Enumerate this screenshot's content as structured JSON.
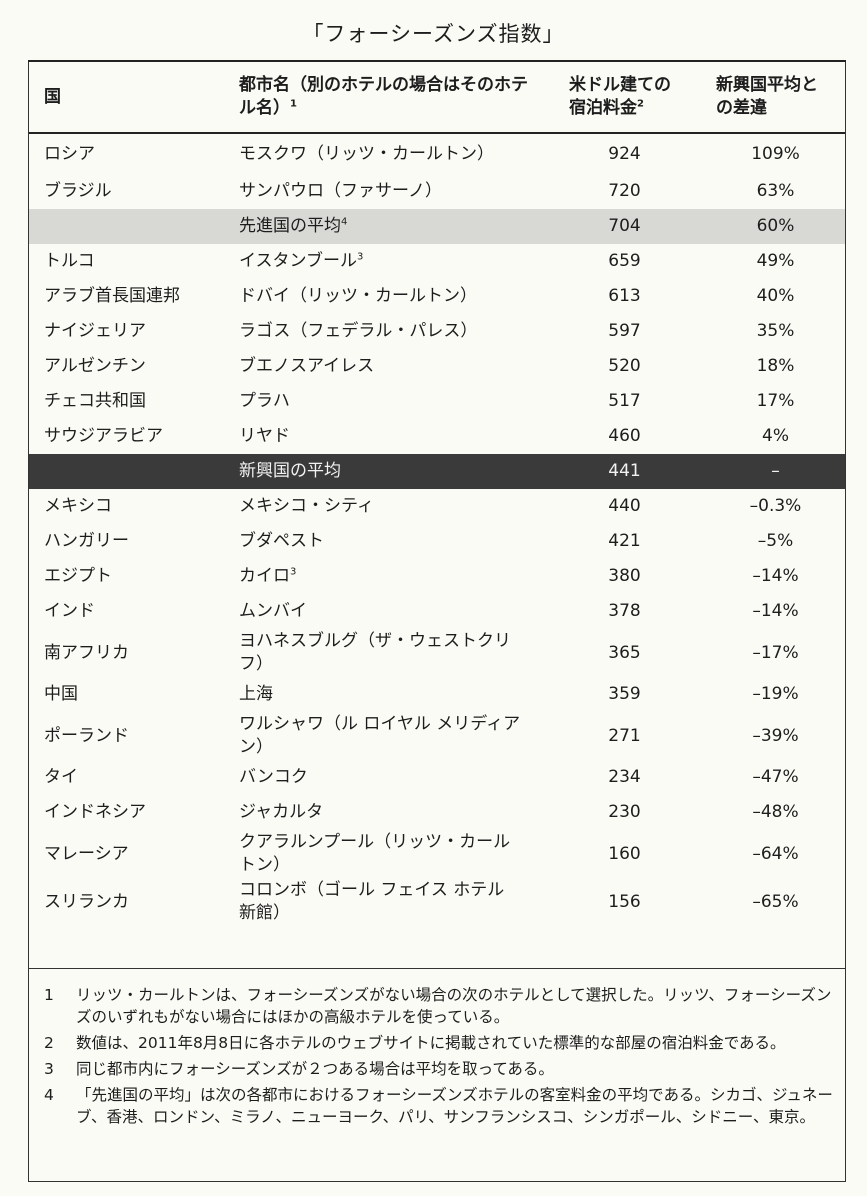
{
  "title": "「フォーシーズンズ指数」",
  "table": {
    "headers": {
      "country": "国",
      "city": "都市名（別のホテルの場合はそのホテル名）",
      "city_sup": "1",
      "price": "米ドル建ての宿泊料金",
      "price_sup": "2",
      "diff": "新興国平均との差違"
    },
    "rows": [
      {
        "country": "ロシア",
        "city": "モスクワ（リッツ・カールトン）",
        "sup": "",
        "price": "924",
        "diff": "109%"
      },
      {
        "country": "ブラジル",
        "city": "サンパウロ（ファサーノ）",
        "sup": "",
        "price": "720",
        "diff": "63%"
      },
      {
        "country": "",
        "city": "先進国の平均",
        "sup": "4",
        "price": "704",
        "diff": "60%"
      },
      {
        "country": "トルコ",
        "city": "イスタンブール",
        "sup": "3",
        "price": "659",
        "diff": "49%"
      },
      {
        "country": "アラブ首長国連邦",
        "city": "ドバイ（リッツ・カールトン）",
        "sup": "",
        "price": "613",
        "diff": "40%"
      },
      {
        "country": "ナイジェリア",
        "city": "ラゴス（フェデラル・パレス）",
        "sup": "",
        "price": "597",
        "diff": "35%"
      },
      {
        "country": "アルゼンチン",
        "city": "ブエノスアイレス",
        "sup": "",
        "price": "520",
        "diff": "18%"
      },
      {
        "country": "チェコ共和国",
        "city": "プラハ",
        "sup": "",
        "price": "517",
        "diff": "17%"
      },
      {
        "country": "サウジアラビア",
        "city": "リヤド",
        "sup": "",
        "price": "460",
        "diff": "4%"
      },
      {
        "country": "",
        "city": "新興国の平均",
        "sup": "",
        "price": "441",
        "diff": "–"
      },
      {
        "country": "メキシコ",
        "city": "メキシコ・シティ",
        "sup": "",
        "price": "440",
        "diff": "–0.3%"
      },
      {
        "country": "ハンガリー",
        "city": "ブダペスト",
        "sup": "",
        "price": "421",
        "diff": "–5%"
      },
      {
        "country": "エジプト",
        "city": "カイロ",
        "sup": "3",
        "price": "380",
        "diff": "–14%"
      },
      {
        "country": "インド",
        "city": "ムンバイ",
        "sup": "",
        "price": "378",
        "diff": "–14%"
      },
      {
        "country": "南アフリカ",
        "city": "ヨハネスブルグ（ザ・ウェストクリフ）",
        "sup": "",
        "price": "365",
        "diff": "–17%"
      },
      {
        "country": "中国",
        "city": "上海",
        "sup": "",
        "price": "359",
        "diff": "–19%"
      },
      {
        "country": "ポーランド",
        "city": "ワルシャワ（ル ロイヤル メリディアン）",
        "sup": "",
        "price": "271",
        "diff": "–39%"
      },
      {
        "country": "タイ",
        "city": "バンコク",
        "sup": "",
        "price": "234",
        "diff": "–47%"
      },
      {
        "country": "インドネシア",
        "city": "ジャカルタ",
        "sup": "",
        "price": "230",
        "diff": "–48%"
      },
      {
        "country": "マレーシア",
        "city": "クアラルンプール（リッツ・カールトン）",
        "sup": "",
        "price": "160",
        "diff": "–64%"
      },
      {
        "country": "スリランカ",
        "city": "コロンボ（ゴール フェイス ホテル新館）",
        "sup": "",
        "price": "156",
        "diff": "–65%"
      }
    ]
  },
  "notes": [
    {
      "num": "1",
      "text": "リッツ・カールトンは、フォーシーズンズがない場合の次のホテルとして選択した。リッツ、フォーシーズンズのいずれもがない場合にはほかの高級ホテルを使っている。"
    },
    {
      "num": "2",
      "text": "数値は、2011年8月8日に各ホテルのウェブサイトに掲載されていた標準的な部屋の宿泊料金である。"
    },
    {
      "num": "3",
      "text": "同じ都市内にフォーシーズンズが２つある場合は平均を取ってある。"
    },
    {
      "num": "4",
      "text": "「先進国の平均」は次の各都市におけるフォーシーズンズホテルの客室料金の平均である。シカゴ、ジュネーブ、香港、ロンドン、ミラノ、ニューヨーク、パリ、サンフランシスコ、シンガポール、シドニー、東京。"
    }
  ]
}
